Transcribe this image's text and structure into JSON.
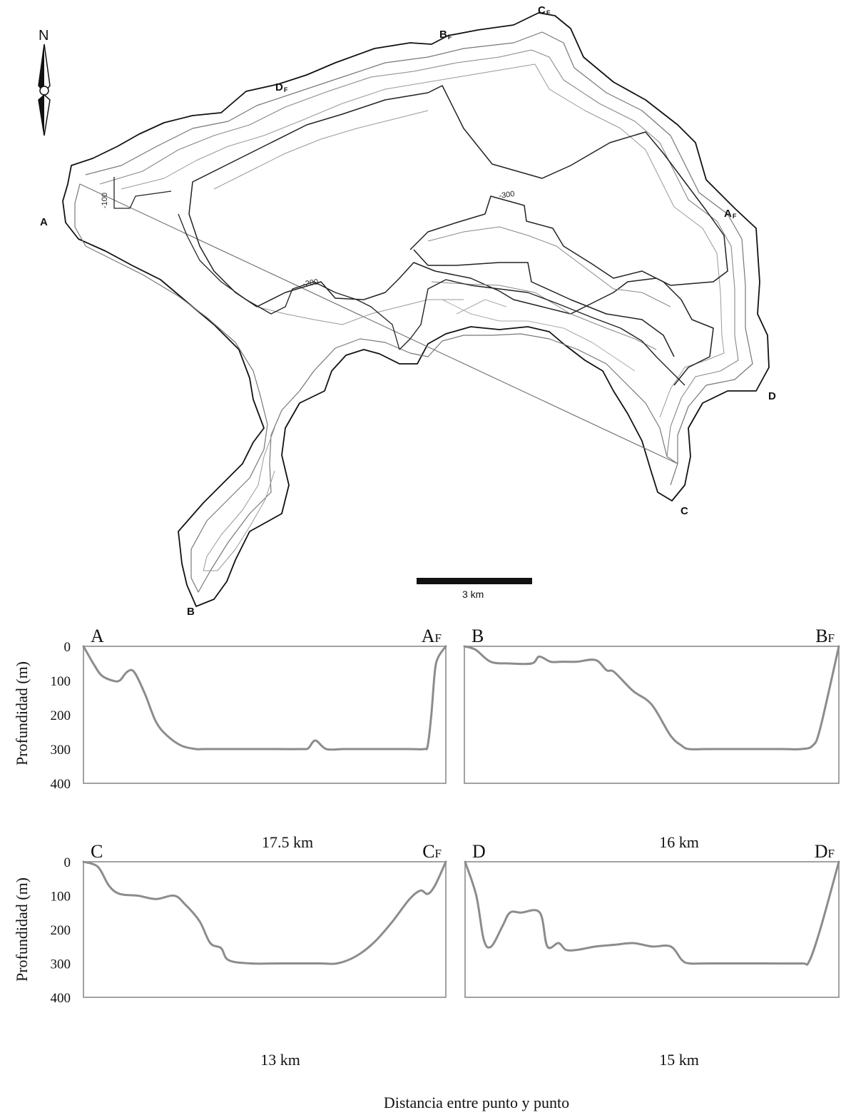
{
  "map": {
    "north_label": "N",
    "point_labels": [
      {
        "name": "point-a",
        "label": "A",
        "sub": ""
      },
      {
        "name": "point-b",
        "label": "B",
        "sub": ""
      },
      {
        "name": "point-c",
        "label": "C",
        "sub": ""
      },
      {
        "name": "point-d",
        "label": "D",
        "sub": ""
      },
      {
        "name": "point-af",
        "label": "A",
        "sub": "F"
      },
      {
        "name": "point-bf",
        "label": "B",
        "sub": "F"
      },
      {
        "name": "point-cf",
        "label": "C",
        "sub": "F"
      },
      {
        "name": "point-df",
        "label": "D",
        "sub": "F"
      }
    ],
    "contour_labels": [
      "-100",
      "-200",
      "-300"
    ],
    "scale_bar_label": "3 km"
  },
  "chart_data": [
    {
      "type": "line",
      "start_label": "A",
      "end_label": "A",
      "end_sub": "F",
      "distance_label": "17.5 km",
      "ylabel": "Profundidad (m)",
      "yticks": [
        0,
        100,
        200,
        300,
        400
      ],
      "ylim": [
        0,
        400
      ],
      "xlim": [
        0,
        1
      ],
      "x": [
        0,
        0.03,
        0.05,
        0.08,
        0.1,
        0.12,
        0.14,
        0.17,
        0.2,
        0.23,
        0.27,
        0.31,
        0.33,
        0.4,
        0.5,
        0.6,
        0.62,
        0.64,
        0.67,
        0.72,
        0.8,
        0.9,
        0.94,
        0.95,
        0.96,
        0.97,
        0.98,
        1.0
      ],
      "y": [
        0,
        55,
        85,
        100,
        100,
        75,
        75,
        140,
        220,
        260,
        290,
        300,
        300,
        300,
        300,
        300,
        298,
        275,
        300,
        300,
        300,
        300,
        300,
        290,
        200,
        70,
        30,
        0
      ]
    },
    {
      "type": "line",
      "start_label": "B",
      "end_label": "B",
      "end_sub": "F",
      "distance_label": "16 km",
      "ylabel": "",
      "yticks": [],
      "ylim": [
        0,
        400
      ],
      "xlim": [
        0,
        1
      ],
      "x": [
        0,
        0.03,
        0.07,
        0.12,
        0.18,
        0.2,
        0.23,
        0.26,
        0.3,
        0.35,
        0.38,
        0.4,
        0.45,
        0.5,
        0.55,
        0.58,
        0.6,
        0.65,
        0.75,
        0.85,
        0.9,
        0.93,
        0.95,
        1.0
      ],
      "y": [
        0,
        10,
        45,
        50,
        50,
        30,
        45,
        45,
        45,
        40,
        70,
        75,
        130,
        170,
        260,
        290,
        300,
        300,
        300,
        300,
        300,
        290,
        240,
        0
      ]
    },
    {
      "type": "line",
      "start_label": "C",
      "end_label": "C",
      "end_sub": "F",
      "distance_label": "13 km",
      "ylabel": "Profundidad (m)",
      "yticks": [
        0,
        100,
        200,
        300,
        400
      ],
      "ylim": [
        0,
        400
      ],
      "xlim": [
        0,
        1
      ],
      "x": [
        0,
        0.04,
        0.07,
        0.1,
        0.15,
        0.2,
        0.25,
        0.28,
        0.32,
        0.35,
        0.38,
        0.4,
        0.46,
        0.55,
        0.65,
        0.7,
        0.75,
        0.8,
        0.85,
        0.9,
        0.93,
        0.95,
        0.97,
        1.0
      ],
      "y": [
        0,
        15,
        70,
        95,
        100,
        110,
        100,
        125,
        175,
        240,
        255,
        290,
        300,
        300,
        300,
        300,
        280,
        240,
        180,
        110,
        85,
        95,
        70,
        0
      ]
    },
    {
      "type": "line",
      "start_label": "D",
      "end_label": "D",
      "end_sub": "F",
      "distance_label": "15 km",
      "ylabel": "",
      "yticks": [],
      "ylim": [
        0,
        400
      ],
      "xlim": [
        0,
        1
      ],
      "x": [
        0,
        0.03,
        0.05,
        0.07,
        0.1,
        0.12,
        0.15,
        0.2,
        0.22,
        0.25,
        0.27,
        0.3,
        0.35,
        0.4,
        0.45,
        0.5,
        0.55,
        0.58,
        0.6,
        0.65,
        0.8,
        0.9,
        0.92,
        0.95,
        1.0
      ],
      "y": [
        0,
        100,
        230,
        250,
        190,
        150,
        150,
        150,
        250,
        240,
        260,
        260,
        250,
        245,
        240,
        250,
        250,
        290,
        300,
        300,
        300,
        300,
        295,
        200,
        0
      ]
    }
  ],
  "figure": {
    "xlabel": "Distancia entre punto y punto"
  }
}
